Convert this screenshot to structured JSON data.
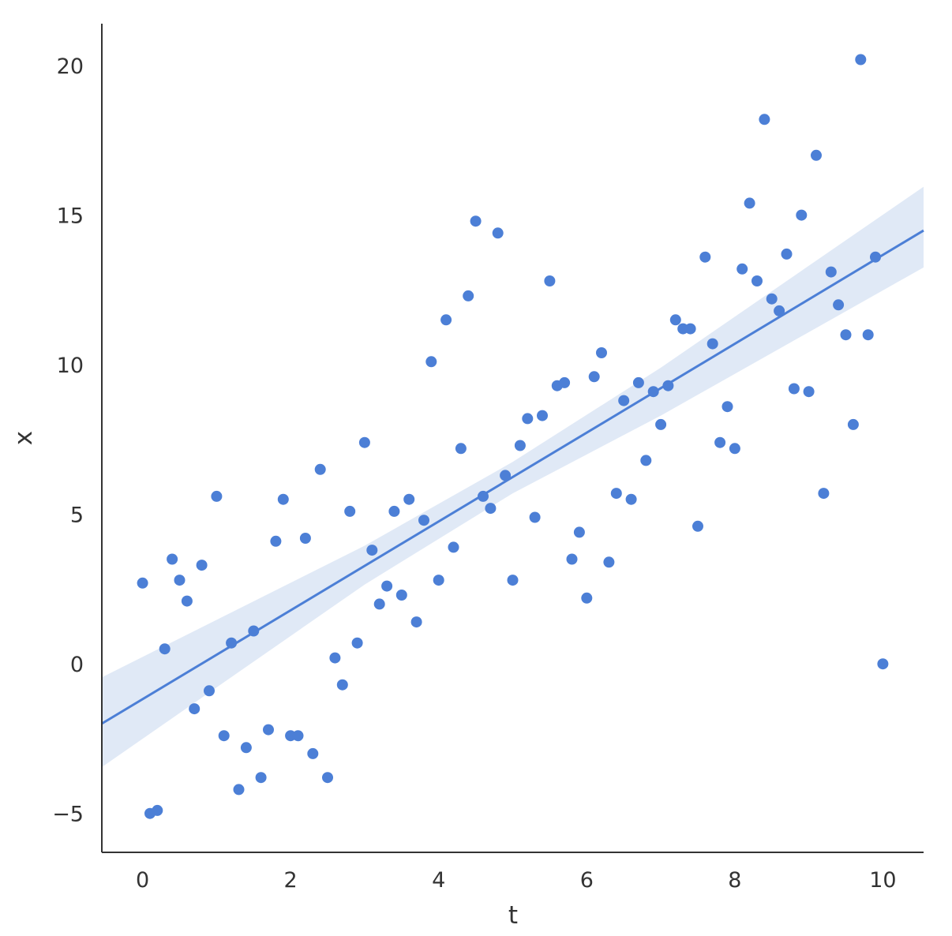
{
  "chart_data": {
    "type": "scatter",
    "title": "",
    "xlabel": "t",
    "ylabel": "x",
    "xlim": [
      -0.55,
      10.55
    ],
    "ylim": [
      -6.3,
      21.4
    ],
    "xticks": [
      0,
      2,
      4,
      6,
      8,
      10
    ],
    "yticks": [
      -5,
      0,
      5,
      10,
      15,
      20
    ],
    "grid": false,
    "legend": "none",
    "colors": {
      "points": "#4c7fd6",
      "line": "#4c7fd6",
      "band": "#dbe5f5",
      "axis": "#333333"
    },
    "series": [
      {
        "type": "scatter",
        "x": [
          0.0,
          0.1,
          0.2,
          0.3,
          0.4,
          0.5,
          0.6,
          0.7,
          0.8,
          0.9,
          1.0,
          1.1,
          1.2,
          1.3,
          1.4,
          1.5,
          1.6,
          1.7,
          1.8,
          1.9,
          2.0,
          2.1,
          2.2,
          2.3,
          2.4,
          2.5,
          2.6,
          2.7,
          2.8,
          2.9,
          3.0,
          3.1,
          3.2,
          3.3,
          3.4,
          3.5,
          3.6,
          3.7,
          3.8,
          3.9,
          4.0,
          4.1,
          4.2,
          4.3,
          4.4,
          4.5,
          4.6,
          4.7,
          4.8,
          4.9,
          5.0,
          5.1,
          5.2,
          5.3,
          5.4,
          5.5,
          5.6,
          5.7,
          5.8,
          5.9,
          6.0,
          6.1,
          6.2,
          6.3,
          6.4,
          6.5,
          6.6,
          6.7,
          6.8,
          6.9,
          7.0,
          7.1,
          7.2,
          7.3,
          7.4,
          7.5,
          7.6,
          7.7,
          7.8,
          7.9,
          8.0,
          8.1,
          8.2,
          8.3,
          8.4,
          8.5,
          8.6,
          8.7,
          8.8,
          8.9,
          9.0,
          9.1,
          9.2,
          9.3,
          9.4,
          9.5,
          9.6,
          9.7,
          9.8,
          9.9,
          10.0
        ],
        "y": [
          2.7,
          -5.0,
          -4.9,
          0.5,
          3.5,
          2.8,
          2.1,
          -1.5,
          3.3,
          -0.9,
          5.6,
          -2.4,
          0.7,
          -4.2,
          -2.8,
          1.1,
          -3.8,
          -2.2,
          4.1,
          5.5,
          -2.4,
          -2.4,
          4.2,
          -3.0,
          6.5,
          -3.8,
          0.2,
          -0.7,
          5.1,
          0.7,
          7.4,
          3.8,
          2.0,
          2.6,
          5.1,
          2.3,
          5.5,
          1.4,
          4.8,
          10.1,
          2.8,
          11.5,
          3.9,
          7.2,
          12.3,
          14.8,
          5.6,
          5.2,
          14.4,
          6.3,
          2.8,
          7.3,
          8.2,
          4.9,
          8.3,
          12.8,
          9.3,
          9.4,
          3.5,
          4.4,
          2.2,
          9.6,
          10.4,
          3.4,
          5.7,
          8.8,
          5.5,
          9.4,
          6.8,
          9.1,
          8.0,
          9.3,
          11.5,
          11.2,
          11.2,
          4.6,
          13.6,
          10.7,
          7.4,
          8.6,
          7.2,
          13.2,
          15.4,
          12.8,
          18.2,
          12.2,
          11.8,
          13.7,
          9.2,
          15.0,
          9.1,
          17.0,
          5.7,
          13.1,
          12.0,
          11.0,
          8.0,
          20.2,
          11.0,
          13.6,
          0.0
        ]
      },
      {
        "type": "regression",
        "slope": 1.485,
        "intercept": -1.18,
        "ci_lower": [
          [
            -0.55,
            -3.45
          ],
          [
            3.0,
            2.65
          ],
          [
            5.0,
            5.7
          ],
          [
            7.0,
            8.3
          ],
          [
            10.55,
            13.25
          ]
        ],
        "ci_upper": [
          [
            -0.55,
            -0.45
          ],
          [
            3.0,
            3.95
          ],
          [
            5.0,
            6.75
          ],
          [
            7.0,
            9.9
          ],
          [
            10.55,
            15.95
          ]
        ]
      }
    ]
  }
}
